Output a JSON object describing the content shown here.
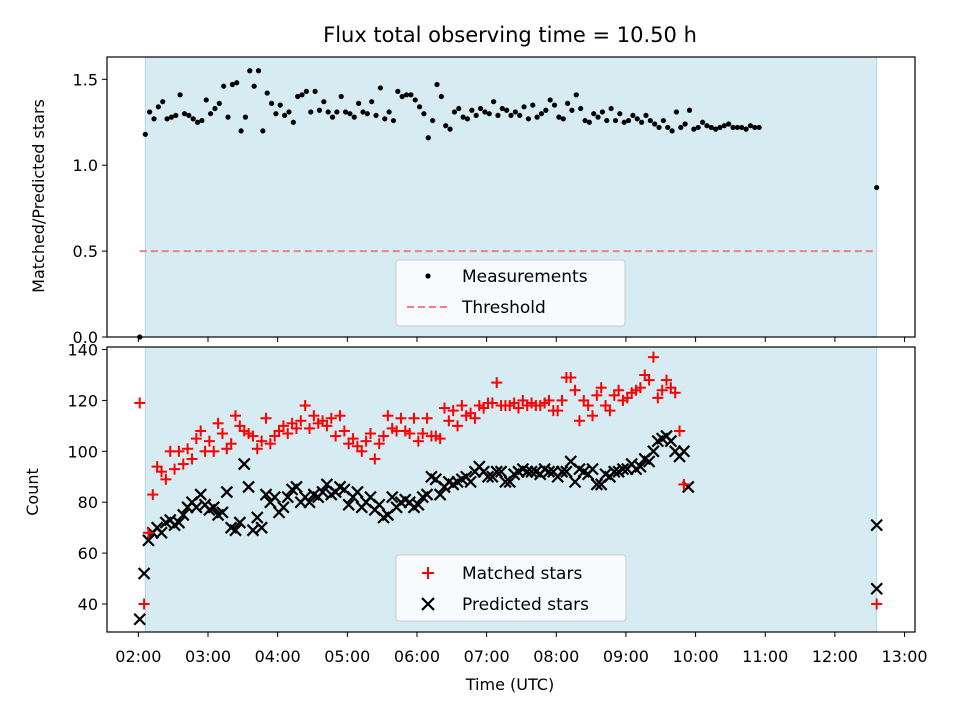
{
  "figure_title": "Flux total observing time = 10.50 h",
  "colors": {
    "shade": "#add8e6",
    "threshold": "#f08080",
    "matched": "#ff0000",
    "predicted": "#000000",
    "measurement": "#000000"
  },
  "chart_data": [
    {
      "type": "scatter",
      "title": "Flux total observing time = 10.50 h",
      "xlabel": "",
      "ylabel": "Matched/Predicted stars",
      "xlim_hours": [
        1.55,
        13.15
      ],
      "ylim": [
        0,
        1.63
      ],
      "yticks": [
        0.0,
        0.5,
        1.0,
        1.5
      ],
      "ytick_labels": [
        "0.0",
        "0.5",
        "1.0",
        "1.5"
      ],
      "shaded_interval_hours": [
        2.1,
        12.6
      ],
      "threshold": 0.5,
      "legend": [
        "Measurements",
        "Threshold"
      ],
      "legend_position": "lower center",
      "series": [
        {
          "name": "Measurements",
          "x_start": 2.1,
          "x_step": 0.0625,
          "values": [
            1.18,
            1.31,
            1.27,
            1.34,
            1.37,
            1.27,
            1.28,
            1.29,
            1.41,
            1.3,
            1.29,
            1.27,
            1.25,
            1.26,
            1.38,
            1.3,
            1.33,
            1.36,
            1.46,
            1.28,
            1.47,
            1.48,
            1.2,
            1.28,
            1.55,
            1.46,
            1.55,
            1.2,
            1.42,
            1.36,
            1.3,
            1.35,
            1.29,
            1.31,
            1.25,
            1.4,
            1.41,
            1.43,
            1.31,
            1.43,
            1.32,
            1.37,
            1.31,
            1.28,
            1.31,
            1.4,
            1.31,
            1.3,
            1.28,
            1.36,
            1.31,
            1.3,
            1.37,
            1.29,
            1.45,
            1.27,
            1.31,
            1.26,
            1.43,
            1.4,
            1.41,
            1.41,
            1.38,
            1.34,
            1.3,
            1.16,
            1.26,
            1.47,
            1.4,
            1.23,
            1.21,
            1.31,
            1.33,
            1.28,
            1.27,
            1.32,
            1.29,
            1.33,
            1.31,
            1.3,
            1.37,
            1.29,
            1.33,
            1.32,
            1.29,
            1.31,
            1.29,
            1.34,
            1.27,
            1.35,
            1.28,
            1.3,
            1.32,
            1.38,
            1.35,
            1.28,
            1.27,
            1.36,
            1.32,
            1.41,
            1.33,
            1.26,
            1.25,
            1.3,
            1.28,
            1.31,
            1.26,
            1.33,
            1.26,
            1.3,
            1.25,
            1.26,
            1.29,
            1.27,
            1.25,
            1.29,
            1.26,
            1.24,
            1.22,
            1.26,
            1.22,
            1.2,
            1.31,
            1.22,
            1.24,
            1.32,
            1.21,
            1.22,
            1.25,
            1.23,
            1.22,
            1.21,
            1.22,
            1.23,
            1.24,
            1.22,
            1.22,
            1.22,
            1.21,
            1.23,
            1.22,
            1.22
          ],
          "extra_points": [
            [
              2.02,
              0.0
            ],
            [
              12.6,
              0.87
            ]
          ]
        },
        {
          "name": "Threshold",
          "value": 0.5
        }
      ]
    },
    {
      "type": "scatter",
      "title": "",
      "xlabel": "Time (UTC)",
      "ylabel": "Count",
      "xlim_hours": [
        1.55,
        13.15
      ],
      "ylim": [
        29,
        141
      ],
      "yticks": [
        40,
        60,
        80,
        100,
        120,
        140
      ],
      "ytick_labels": [
        "40",
        "60",
        "80",
        "100",
        "120",
        "140"
      ],
      "xticks_hours": [
        2,
        3,
        4,
        5,
        6,
        7,
        8,
        9,
        10,
        11,
        12,
        13
      ],
      "xtick_labels": [
        "02:00",
        "03:00",
        "04:00",
        "05:00",
        "06:00",
        "07:00",
        "08:00",
        "09:00",
        "10:00",
        "11:00",
        "12:00",
        "13:00"
      ],
      "shaded_interval_hours": [
        2.1,
        12.6
      ],
      "legend": [
        "Matched stars",
        "Predicted stars"
      ],
      "legend_position": "lower center",
      "series": [
        {
          "name": "Matched stars",
          "marker": "+",
          "x_start": 2.02,
          "x_step": 0.0625,
          "values": [
            119,
            40,
            68,
            83,
            94,
            92,
            89,
            100,
            93,
            100,
            95,
            101,
            97,
            105,
            108,
            100,
            104,
            100,
            111,
            107,
            101,
            103,
            114,
            110,
            108,
            107,
            106,
            101,
            104,
            113,
            103,
            106,
            108,
            110,
            107,
            111,
            109,
            112,
            118,
            109,
            114,
            111,
            112,
            110,
            113,
            106,
            114,
            108,
            103,
            105,
            102,
            100,
            104,
            107,
            97,
            103,
            106,
            114,
            109,
            108,
            113,
            108,
            107,
            113,
            104,
            107,
            113,
            106,
            106,
            105,
            117,
            112,
            116,
            110,
            118,
            114,
            115,
            113,
            118,
            117,
            119,
            119,
            127,
            118,
            118,
            118,
            119,
            117,
            120,
            118,
            119,
            118,
            118,
            119,
            120,
            116,
            116,
            120,
            129,
            129,
            124,
            112,
            120,
            118,
            114,
            122,
            125,
            118,
            116,
            122,
            124,
            120,
            121,
            123,
            124,
            125,
            130,
            128,
            137,
            121,
            124,
            128,
            125,
            123,
            108,
            87
          ],
          "extra_points": [
            [
              12.6,
              40
            ]
          ]
        },
        {
          "name": "Predicted stars",
          "marker": "x",
          "x_start": 2.02,
          "x_step": 0.0625,
          "values": [
            34,
            52,
            65,
            68,
            70,
            68,
            72,
            73,
            71,
            72,
            75,
            78,
            80,
            78,
            83,
            79,
            77,
            78,
            75,
            76,
            84,
            70,
            69,
            72,
            95,
            86,
            69,
            74,
            70,
            83,
            80,
            82,
            76,
            78,
            82,
            85,
            86,
            80,
            82,
            80,
            83,
            82,
            84,
            87,
            83,
            84,
            86,
            85,
            79,
            82,
            84,
            78,
            80,
            82,
            77,
            79,
            74,
            75,
            82,
            78,
            80,
            81,
            80,
            78,
            79,
            82,
            83,
            90,
            89,
            83,
            86,
            88,
            87,
            88,
            89,
            90,
            88,
            92,
            94,
            92,
            90,
            90,
            92,
            92,
            88,
            88,
            91,
            92,
            93,
            92,
            92,
            92,
            91,
            93,
            92,
            92,
            90,
            92,
            92,
            96,
            88,
            93,
            92,
            91,
            93,
            87,
            87,
            91,
            90,
            92,
            92,
            93,
            93,
            95,
            93,
            94,
            97,
            96,
            100,
            104,
            105,
            106,
            104,
            100,
            98,
            100,
            86
          ],
          "extra_points": [
            [
              12.6,
              71
            ],
            [
              12.6,
              46
            ]
          ]
        }
      ]
    }
  ]
}
